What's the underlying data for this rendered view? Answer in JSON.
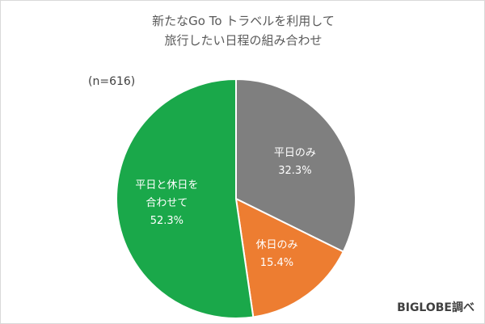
{
  "chart_data": {
    "type": "pie",
    "title": [
      "新たなGo To トラベルを利用して",
      "旅行したい日程の組み合わせ"
    ],
    "note": "(n=616)",
    "source": "BIGLOBE調べ",
    "categories": [
      "平日のみ",
      "休日のみ",
      "平日と休日を合わせて"
    ],
    "values": [
      32.3,
      15.4,
      52.3
    ],
    "value_labels": [
      "32.3%",
      "15.4%",
      "52.3%"
    ],
    "colors": [
      "#7f7f7f",
      "#ed7d31",
      "#1aa84a"
    ]
  }
}
